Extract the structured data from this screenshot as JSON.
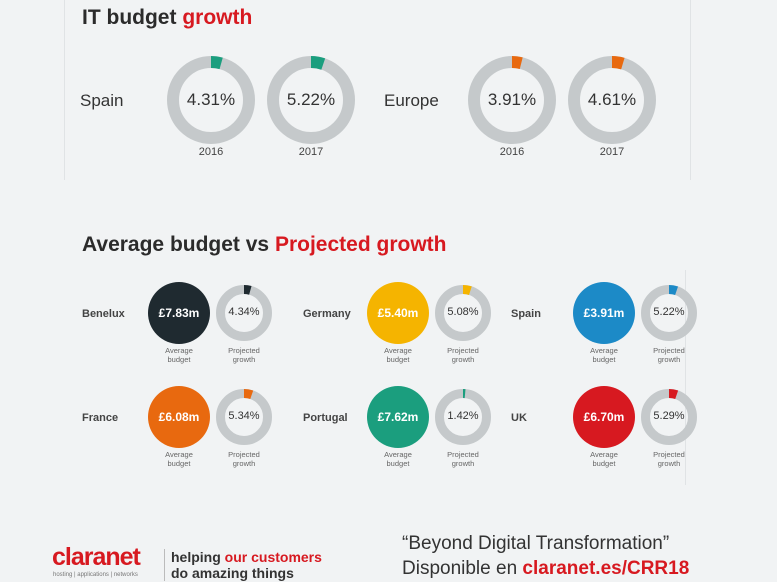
{
  "colors": {
    "track": "#c5c9cb",
    "green": "#1b9e7e",
    "orange": "#e8690f",
    "dark": "#1f2a30",
    "yellow": "#f5b400",
    "blue": "#1c8ac7",
    "red": "#d71920"
  },
  "section1": {
    "title_a": "IT budget ",
    "title_b": "growth",
    "regions": [
      {
        "name": "Spain",
        "color": "#1b9e7e",
        "items": [
          {
            "value": "4.31%",
            "pct": 4.31,
            "year": "2016"
          },
          {
            "value": "5.22%",
            "pct": 5.22,
            "year": "2017"
          }
        ]
      },
      {
        "name": "Europe",
        "color": "#e8690f",
        "items": [
          {
            "value": "3.91%",
            "pct": 3.91,
            "year": "2016"
          },
          {
            "value": "4.61%",
            "pct": 4.61,
            "year": "2017"
          }
        ]
      }
    ]
  },
  "section2": {
    "title_a": "Average budget vs ",
    "title_b": "Projected growth",
    "avg_label_1": "Average",
    "avg_label_2": "budget",
    "proj_label_1": "Projected",
    "proj_label_2": "growth",
    "countries": [
      {
        "name": "Benelux",
        "budget": "£7.83m",
        "growth": "4.34%",
        "pct": 4.34,
        "color": "#1f2a30"
      },
      {
        "name": "Germany",
        "budget": "£5.40m",
        "growth": "5.08%",
        "pct": 5.08,
        "color": "#f5b400"
      },
      {
        "name": "Spain",
        "budget": "£3.91m",
        "growth": "5.22%",
        "pct": 5.22,
        "color": "#1c8ac7"
      },
      {
        "name": "France",
        "budget": "£6.08m",
        "growth": "5.34%",
        "pct": 5.34,
        "color": "#e8690f"
      },
      {
        "name": "Portugal",
        "budget": "£7.62m",
        "growth": "1.42%",
        "pct": 1.42,
        "color": "#1b9e7e"
      },
      {
        "name": "UK",
        "budget": "£6.70m",
        "growth": "5.29%",
        "pct": 5.29,
        "color": "#d71920"
      }
    ]
  },
  "footer": {
    "logo": "claranet",
    "logo_sub": "hosting | applications | networks",
    "tag_1a": "helping ",
    "tag_1b": "our customers",
    "tag_2": "do amazing things",
    "quote": "“Beyond Digital Transformation”",
    "avail": "Disponible en ",
    "link": "claranet.es/CRR18"
  }
}
